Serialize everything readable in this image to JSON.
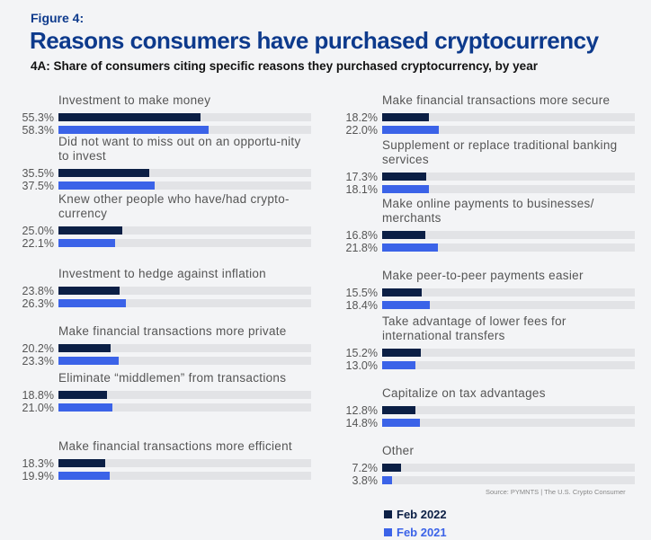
{
  "figure_label": "Figure 4:",
  "chart_data": {
    "type": "bar",
    "title": "Reasons consumers have purchased cryptocurrency",
    "subtitle": "4A: Share of consumers citing specific reasons they purchased cryptocurrency, by year",
    "source": "Source: PYMNTS | The U.S. Crypto Consumer",
    "xlim": [
      0,
      100
    ],
    "series": [
      {
        "name": "Feb 2022",
        "color": "#0b1f45"
      },
      {
        "name": "Feb 2021",
        "color": "#3b63e8"
      }
    ],
    "categories": [
      {
        "label": "Investment to make money",
        "v2022": 55.3,
        "v2021": 58.3,
        "t2022": "55.3%",
        "t2021": "58.3%"
      },
      {
        "label": "Did not want to miss out on an opportu-nity to invest",
        "v2022": 35.5,
        "v2021": 37.5,
        "t2022": "35.5%",
        "t2021": "37.5%"
      },
      {
        "label": "Knew other people who have/had crypto-currency",
        "v2022": 25.0,
        "v2021": 22.1,
        "t2022": "25.0%",
        "t2021": "22.1%"
      },
      {
        "label": "Investment to hedge against inflation",
        "v2022": 23.8,
        "v2021": 26.3,
        "t2022": "23.8%",
        "t2021": "26.3%"
      },
      {
        "label": "Make financial transactions more private",
        "v2022": 20.2,
        "v2021": 23.3,
        "t2022": "20.2%",
        "t2021": "23.3%"
      },
      {
        "label": "Eliminate “middlemen” from transactions",
        "v2022": 18.8,
        "v2021": 21.0,
        "t2022": "18.8%",
        "t2021": "21.0%"
      },
      {
        "label": "Make financial transactions more efficient",
        "v2022": 18.3,
        "v2021": 19.9,
        "t2022": "18.3%",
        "t2021": "19.9%"
      },
      {
        "label": "Make financial transactions more secure",
        "v2022": 18.2,
        "v2021": 22.0,
        "t2022": "18.2%",
        "t2021": "22.0%"
      },
      {
        "label": "Supplement or replace traditional banking services",
        "v2022": 17.3,
        "v2021": 18.1,
        "t2022": "17.3%",
        "t2021": "18.1%"
      },
      {
        "label": "Make online payments to businesses/ merchants",
        "v2022": 16.8,
        "v2021": 21.8,
        "t2022": "16.8%",
        "t2021": "21.8%"
      },
      {
        "label": "Make peer-to-peer payments easier",
        "v2022": 15.5,
        "v2021": 18.4,
        "t2022": "15.5%",
        "t2021": "18.4%"
      },
      {
        "label": "Take advantage of lower fees for international transfers",
        "v2022": 15.2,
        "v2021": 13.0,
        "t2022": "15.2%",
        "t2021": "13.0%"
      },
      {
        "label": "Capitalize on tax advantages",
        "v2022": 12.8,
        "v2021": 14.8,
        "t2022": "12.8%",
        "t2021": "14.8%"
      },
      {
        "label": "Other",
        "v2022": 7.2,
        "v2021": 3.8,
        "t2022": "7.2%",
        "t2021": "3.8%"
      }
    ]
  }
}
